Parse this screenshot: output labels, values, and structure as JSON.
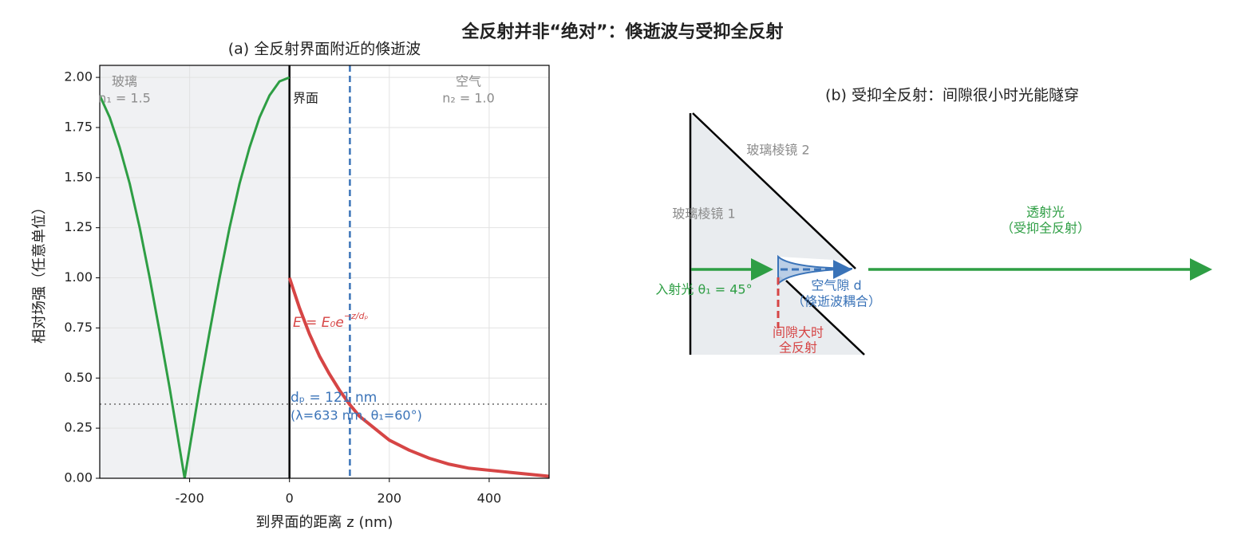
{
  "title": "全反射并非“绝对”：倏逝波与受抑全反射",
  "chart_data": {
    "type": "line",
    "title": "(a) 全反射界面附近的倏逝波",
    "xlabel": "到界面的距离 z (nm)",
    "ylabel": "相对场强（任意单位）",
    "xlim": [
      -380,
      520
    ],
    "ylim": [
      0,
      2.06
    ],
    "xticks": [
      -200,
      0,
      200,
      400
    ],
    "yticks": [
      {
        "value": 0,
        "label": "0.00"
      },
      {
        "value": 0.25,
        "label": "0.25"
      },
      {
        "value": 0.5,
        "label": "0.50"
      },
      {
        "value": 0.75,
        "label": "0.75"
      },
      {
        "value": 1,
        "label": "1.00"
      },
      {
        "value": 1.25,
        "label": "1.25"
      },
      {
        "value": 1.5,
        "label": "1.50"
      },
      {
        "value": 1.75,
        "label": "1.75"
      },
      {
        "value": 2,
        "label": "2.00"
      }
    ],
    "grid": true,
    "interface_x": 0,
    "decay_length": 121,
    "decay_level": 0.37,
    "series": [
      {
        "color": "#2e9e44",
        "width": 3,
        "x": [
          -380,
          -360,
          -340,
          -320,
          -300,
          -280,
          -260,
          -240,
          -220,
          -210,
          -200,
          -180,
          -160,
          -140,
          -120,
          -100,
          -80,
          -60,
          -40,
          -20,
          0
        ],
        "values": [
          1.91,
          1.8,
          1.65,
          1.47,
          1.25,
          1.0,
          0.73,
          0.45,
          0.15,
          0,
          0.15,
          0.45,
          0.73,
          1.0,
          1.25,
          1.47,
          1.65,
          1.8,
          1.91,
          1.98,
          2.0
        ]
      },
      {
        "color": "#d64545",
        "width": 4,
        "x": [
          0,
          20,
          40,
          60,
          80,
          100,
          120,
          140,
          160,
          180,
          200,
          240,
          280,
          320,
          360,
          400,
          440,
          480,
          520
        ],
        "values": [
          1.0,
          0.85,
          0.72,
          0.61,
          0.52,
          0.44,
          0.37,
          0.31,
          0.27,
          0.23,
          0.19,
          0.14,
          0.1,
          0.07,
          0.05,
          0.04,
          0.03,
          0.02,
          0.01
        ]
      }
    ],
    "annotations": {
      "glass": "玻璃",
      "n1": "n₁ = 1.5",
      "air": "空气",
      "n2": "n₂ = 1.0",
      "interface": "界面",
      "formula_base": "E = E₀e",
      "formula_exp": "−z/dₚ",
      "dp": "dₚ = 121 nm",
      "conditions": "(λ=633 nm, θ₁=60°)"
    }
  },
  "diagram": {
    "title": "(b) 受抑全反射：间隙很小时光能隧穿",
    "prism2": "玻璃棱镜 2",
    "prism1": "玻璃棱镜 1",
    "incident": "入射光 θ₁ = 45°",
    "gap": "空气隙 d",
    "gap_note": "（倏逝波耦合）",
    "large_gap_1": "间隙大时",
    "large_gap_2": "全反射",
    "transmitted": "透射光",
    "transmitted_note": "（受抑全反射）"
  }
}
